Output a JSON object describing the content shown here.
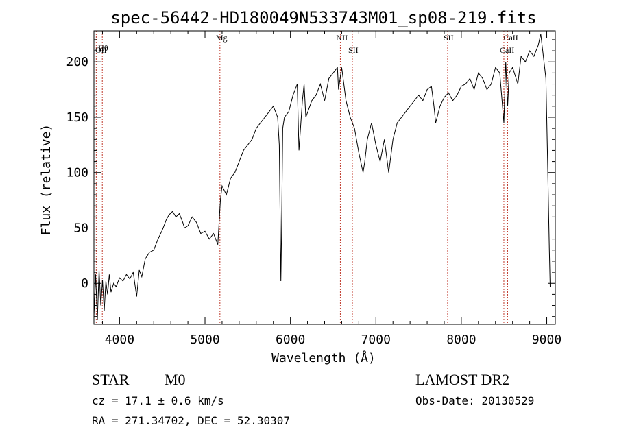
{
  "chart_data": {
    "type": "line",
    "title": "spec-56442-HD180049N533743M01_sp08-219.fits",
    "xlabel": "Wavelength (Å)",
    "ylabel": "Flux (relative)",
    "xlim": [
      3700,
      9100
    ],
    "ylim": [
      -37,
      228
    ],
    "x_ticks": [
      4000,
      5000,
      6000,
      7000,
      8000,
      9000
    ],
    "y_ticks": [
      0,
      50,
      100,
      150,
      200
    ],
    "x_tick_labels": [
      "4000",
      "5000",
      "6000",
      "7000",
      "8000",
      "9000"
    ],
    "y_tick_labels": [
      "0",
      "50",
      "100",
      "150",
      "200"
    ],
    "grid": false,
    "line_color": "#000000",
    "marker_line_color": "#c0392b",
    "series": [
      {
        "x": [
          3700,
          3720,
          3740,
          3760,
          3780,
          3800,
          3820,
          3840,
          3860,
          3880,
          3900,
          3930,
          3960,
          4000,
          4040,
          4080,
          4120,
          4160,
          4200,
          4230,
          4260,
          4300,
          4350,
          4400,
          4450,
          4500,
          4550,
          4580,
          4620,
          4660,
          4700,
          4740,
          4760,
          4800,
          4850,
          4900,
          4950,
          5000,
          5050,
          5100,
          5150,
          5180,
          5200,
          5250,
          5300,
          5350,
          5400,
          5450,
          5500,
          5550,
          5600,
          5650,
          5700,
          5750,
          5800,
          5850,
          5870,
          5888,
          5895,
          5910,
          5930,
          5980,
          6030,
          6080,
          6100,
          6140,
          6160,
          6180,
          6250,
          6300,
          6350,
          6400,
          6450,
          6500,
          6550,
          6563,
          6600,
          6650,
          6700,
          6750,
          6800,
          6850,
          6870,
          6900,
          6950,
          7000,
          7050,
          7100,
          7150,
          7200,
          7250,
          7300,
          7350,
          7400,
          7450,
          7500,
          7550,
          7600,
          7650,
          7680,
          7700,
          7750,
          7800,
          7850,
          7900,
          7950,
          8000,
          8050,
          8100,
          8150,
          8200,
          8250,
          8300,
          8350,
          8400,
          8450,
          8498,
          8520,
          8542,
          8560,
          8600,
          8662,
          8700,
          8750,
          8800,
          8850,
          8900,
          8930,
          8960,
          8990,
          9010,
          9030,
          9040,
          9050
        ],
        "y": [
          -30,
          8,
          -33,
          12,
          -20,
          3,
          -25,
          2,
          -10,
          8,
          -8,
          0,
          -3,
          5,
          2,
          8,
          4,
          10,
          -12,
          12,
          6,
          22,
          28,
          30,
          40,
          48,
          58,
          62,
          65,
          60,
          63,
          55,
          50,
          52,
          60,
          55,
          45,
          47,
          40,
          45,
          35,
          75,
          88,
          80,
          95,
          100,
          110,
          120,
          125,
          130,
          140,
          145,
          150,
          155,
          160,
          150,
          125,
          2,
          40,
          140,
          150,
          155,
          170,
          180,
          120,
          165,
          180,
          150,
          165,
          170,
          180,
          165,
          185,
          190,
          195,
          175,
          195,
          165,
          150,
          140,
          118,
          100,
          110,
          130,
          145,
          125,
          110,
          130,
          100,
          130,
          145,
          150,
          155,
          160,
          165,
          170,
          165,
          175,
          178,
          160,
          145,
          160,
          168,
          172,
          165,
          170,
          178,
          180,
          185,
          175,
          190,
          185,
          175,
          180,
          195,
          190,
          145,
          200,
          160,
          190,
          195,
          180,
          205,
          200,
          210,
          205,
          215,
          225,
          205,
          185,
          110,
          30,
          -3,
          -3
        ]
      }
    ],
    "line_markers": [
      {
        "label": "Hθ",
        "x": 3798
      },
      {
        "label": "OII",
        "x": 3727
      },
      {
        "label": "Mg",
        "x": 5175
      },
      {
        "label": "NII",
        "x": 6584
      },
      {
        "label": "SII",
        "x": 6725
      },
      {
        "label": "SII",
        "x": 7840
      },
      {
        "label": "CaII",
        "x": 8542
      },
      {
        "label": "CaII",
        "x": 8498
      }
    ]
  },
  "info": {
    "class_label": "STAR",
    "subclass": "M0",
    "survey": "LAMOST DR2",
    "redshift_text": "cz = 17.1 ± 0.6 km/s",
    "obs_date_text": "Obs-Date: 20130529",
    "coords_text": "RA = 271.34702, DEC =  52.30307"
  }
}
